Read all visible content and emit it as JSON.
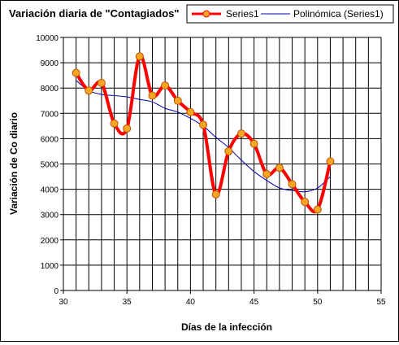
{
  "chart_data": {
    "type": "line",
    "title": "Variación diaria de \"Contagiados\"",
    "xlabel": "Días de la infección",
    "ylabel": "Variación de Co diario",
    "xlim": [
      30,
      55
    ],
    "ylim": [
      0,
      10000
    ],
    "x_ticks": [
      30,
      35,
      40,
      45,
      50,
      55
    ],
    "y_ticks": [
      0,
      1000,
      2000,
      3000,
      4000,
      5000,
      6000,
      7000,
      8000,
      9000,
      10000
    ],
    "grid": true,
    "legend_position": "top-right",
    "series": [
      {
        "name": "Series1",
        "color": "#ff0000",
        "marker_color": "#f5a623",
        "smooth": true,
        "x": [
          31,
          32,
          33,
          34,
          35,
          36,
          37,
          38,
          39,
          40,
          41,
          42,
          43,
          44,
          45,
          46,
          47,
          48,
          49,
          50,
          51
        ],
        "y": [
          8600,
          7900,
          8200,
          6600,
          6400,
          9250,
          7700,
          8100,
          7500,
          7050,
          6550,
          3800,
          5500,
          6200,
          5800,
          4600,
          4850,
          4200,
          3500,
          3200,
          5100
        ]
      },
      {
        "name": "Polinómica (Series1)",
        "color": "#0000b0",
        "type": "trendline",
        "x": [
          31,
          32,
          33,
          34,
          35,
          36,
          37,
          38,
          39,
          40,
          41,
          42,
          43,
          44,
          45,
          46,
          47,
          48,
          49,
          50,
          51
        ],
        "y": [
          8300,
          7900,
          7750,
          7700,
          7650,
          7550,
          7450,
          7200,
          7050,
          6800,
          6500,
          6050,
          5650,
          5150,
          4700,
          4350,
          4050,
          3950,
          3900,
          4050,
          4500
        ]
      }
    ]
  }
}
